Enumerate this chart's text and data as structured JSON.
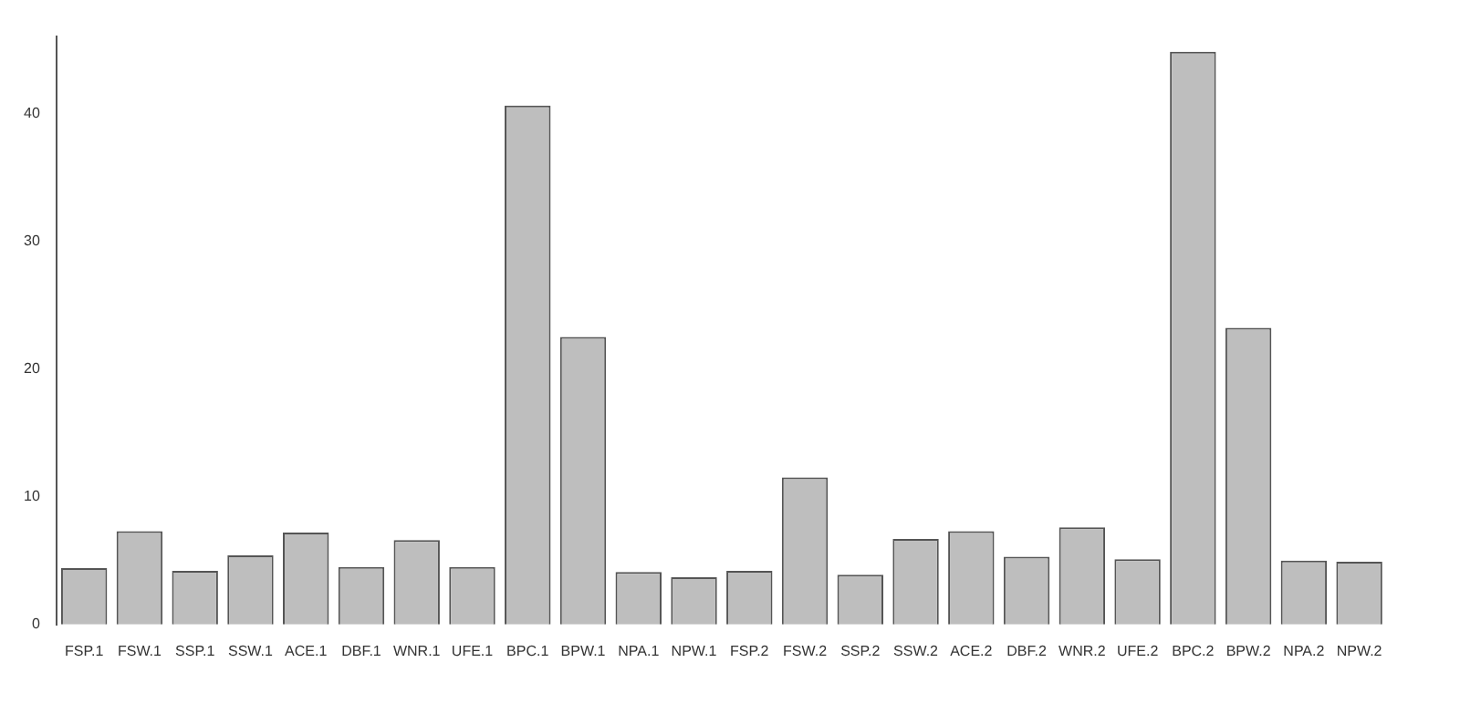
{
  "chart_data": {
    "type": "bar",
    "categories": [
      "FSP.1",
      "FSW.1",
      "SSP.1",
      "SSW.1",
      "ACE.1",
      "DBF.1",
      "WNR.1",
      "UFE.1",
      "BPC.1",
      "BPW.1",
      "NPA.1",
      "NPW.1",
      "FSP.2",
      "FSW.2",
      "SSP.2",
      "SSW.2",
      "ACE.2",
      "DBF.2",
      "WNR.2",
      "UFE.2",
      "BPC.2",
      "BPW.2",
      "NPA.2",
      "NPW.2"
    ],
    "values": [
      4.4,
      7.3,
      4.2,
      5.4,
      7.2,
      4.5,
      6.6,
      4.5,
      40.6,
      22.5,
      4.1,
      3.7,
      4.2,
      11.5,
      3.9,
      6.7,
      7.3,
      5.3,
      7.6,
      5.1,
      44.8,
      23.2,
      5.0,
      4.9
    ],
    "color": "#bebebe",
    "ylim": [
      0,
      46
    ],
    "yticks": [
      0,
      10,
      20,
      30,
      40
    ],
    "grid": false,
    "legend": false
  }
}
